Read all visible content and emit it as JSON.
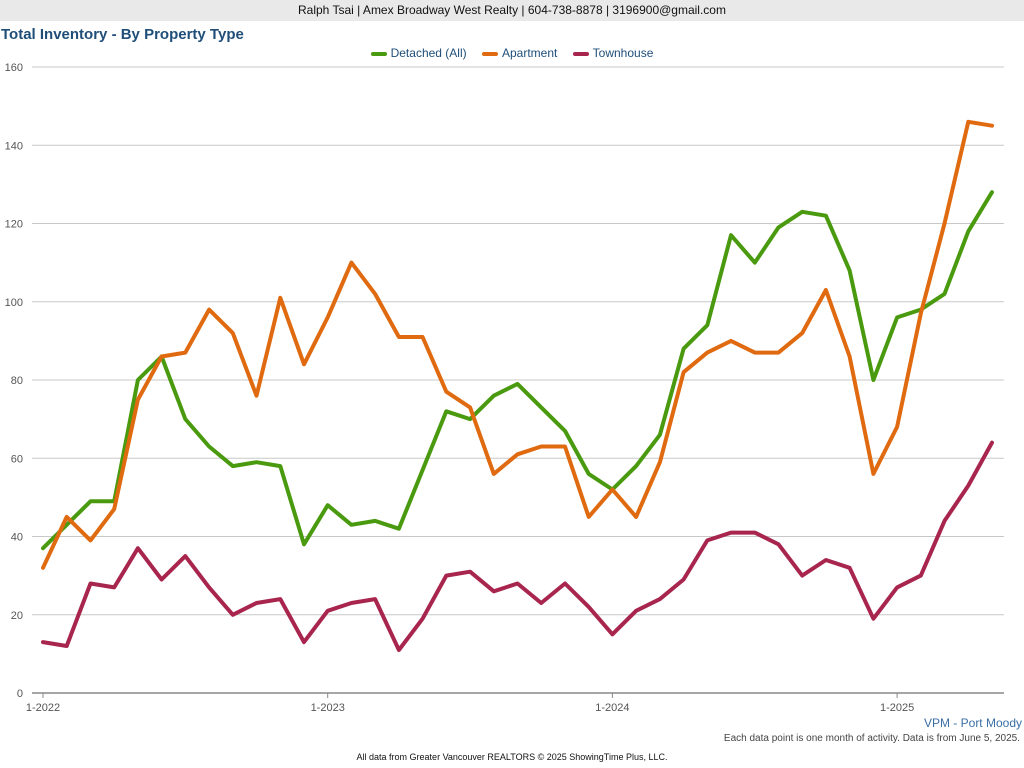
{
  "header": {
    "contact": "Ralph Tsai | Amex Broadway West Realty | 604-738-8878 | 3196900@gmail.com"
  },
  "region_label": "VPM - Port Moody",
  "note": "Each data point is one month of activity. Data is from June 5, 2025.",
  "footer": "All data from Greater Vancouver REALTORS © 2025 ShowingTime Plus, LLC.",
  "colors": {
    "detached": "#4a9a0f",
    "apartment": "#e06a10",
    "townhouse": "#a8254e",
    "grid": "#c8c8c8",
    "axis": "#888888"
  },
  "chart_data": {
    "type": "line",
    "title": "Total Inventory - By Property Type",
    "xlabel": "",
    "ylabel": "",
    "ylim": [
      0,
      160
    ],
    "yticks": [
      0,
      20,
      40,
      60,
      80,
      100,
      120,
      140,
      160
    ],
    "grid": true,
    "legend_position": "top-center",
    "x": [
      "1-2022",
      "2-2022",
      "3-2022",
      "4-2022",
      "5-2022",
      "6-2022",
      "7-2022",
      "8-2022",
      "9-2022",
      "10-2022",
      "11-2022",
      "12-2022",
      "1-2023",
      "2-2023",
      "3-2023",
      "4-2023",
      "5-2023",
      "6-2023",
      "7-2023",
      "8-2023",
      "9-2023",
      "10-2023",
      "11-2023",
      "12-2023",
      "1-2024",
      "2-2024",
      "3-2024",
      "4-2024",
      "5-2024",
      "6-2024",
      "7-2024",
      "8-2024",
      "9-2024",
      "10-2024",
      "11-2024",
      "12-2024",
      "1-2025",
      "2-2025",
      "3-2025",
      "4-2025",
      "5-2025"
    ],
    "xtick_labels": [
      "1-2022",
      "1-2023",
      "1-2024",
      "1-2025"
    ],
    "series": [
      {
        "name": "Detached (All)",
        "color_key": "detached",
        "values": [
          37,
          43,
          49,
          49,
          80,
          86,
          70,
          63,
          58,
          59,
          58,
          38,
          48,
          43,
          44,
          42,
          57,
          72,
          70,
          76,
          79,
          73,
          67,
          56,
          52,
          58,
          66,
          88,
          94,
          117,
          110,
          119,
          123,
          122,
          108,
          80,
          96,
          98,
          102,
          118,
          128
        ]
      },
      {
        "name": "Apartment",
        "color_key": "apartment",
        "values": [
          32,
          45,
          39,
          47,
          75,
          86,
          87,
          98,
          92,
          76,
          101,
          84,
          96,
          110,
          102,
          91,
          91,
          77,
          73,
          56,
          61,
          63,
          63,
          45,
          52,
          45,
          59,
          82,
          87,
          90,
          87,
          87,
          92,
          103,
          86,
          56,
          68,
          97,
          120,
          146,
          145
        ]
      },
      {
        "name": "Townhouse",
        "color_key": "townhouse",
        "values": [
          13,
          12,
          28,
          27,
          37,
          29,
          35,
          27,
          20,
          23,
          24,
          13,
          21,
          23,
          24,
          11,
          19,
          30,
          31,
          26,
          28,
          23,
          28,
          22,
          15,
          21,
          24,
          29,
          39,
          41,
          41,
          38,
          30,
          34,
          32,
          19,
          27,
          30,
          44,
          53,
          64
        ]
      }
    ]
  }
}
